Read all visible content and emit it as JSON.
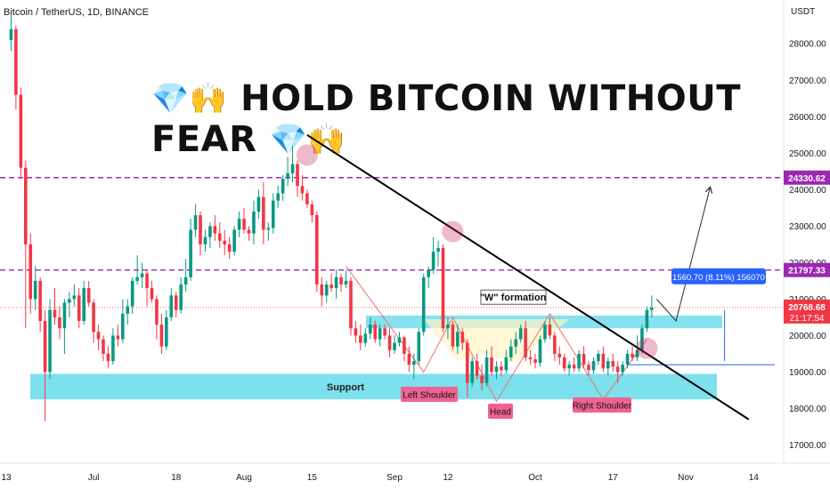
{
  "header": {
    "symbol": "Bitcoin / TetherUS, 1D, BINANCE"
  },
  "banner": {
    "left_icons": "💎🙌",
    "text": "HOLD BITCOIN WITHOUT FEAR",
    "right_icons": "💎🙌"
  },
  "chart_data": {
    "type": "candlestick",
    "currency": "USDT",
    "ylim": [
      16500,
      29200
    ],
    "y_ticks": [
      17000,
      18000,
      19000,
      20000,
      21000,
      22000,
      23000,
      24000,
      25000,
      26000,
      27000,
      28000
    ],
    "y_tick_labels": [
      "17000.00",
      "18000.00",
      "19000.00",
      "20000.00",
      "21000.00",
      "22000.00",
      "23000.00",
      "24000.00",
      "25000.00",
      "26000.00",
      "27000.00",
      "28000.00"
    ],
    "x_tick_labels": [
      "13",
      "Jul",
      "18",
      "Aug",
      "15",
      "Sep",
      "12",
      "Oct",
      "17",
      "Nov",
      "14"
    ],
    "x_tick_days": [
      0,
      18,
      35,
      49,
      63,
      80,
      91,
      109,
      125,
      140,
      154
    ],
    "last_candle_day": 133,
    "candles": [
      {
        "o": 28100,
        "h": 28800,
        "l": 27800,
        "c": 28400
      },
      {
        "o": 28400,
        "h": 28500,
        "l": 26200,
        "c": 26600
      },
      {
        "o": 26600,
        "h": 26800,
        "l": 24300,
        "c": 24600
      },
      {
        "o": 24600,
        "h": 24800,
        "l": 20200,
        "c": 22500
      },
      {
        "o": 22500,
        "h": 22800,
        "l": 20600,
        "c": 21000
      },
      {
        "o": 21000,
        "h": 21900,
        "l": 20700,
        "c": 21500
      },
      {
        "o": 21500,
        "h": 21600,
        "l": 20100,
        "c": 20400
      },
      {
        "o": 20400,
        "h": 20700,
        "l": 17650,
        "c": 19000
      },
      {
        "o": 19000,
        "h": 21000,
        "l": 18800,
        "c": 20700
      },
      {
        "o": 20700,
        "h": 21300,
        "l": 20300,
        "c": 20500
      },
      {
        "o": 20500,
        "h": 20800,
        "l": 19900,
        "c": 20200
      },
      {
        "o": 20200,
        "h": 21000,
        "l": 19500,
        "c": 20900
      },
      {
        "o": 20900,
        "h": 21200,
        "l": 20500,
        "c": 21000
      },
      {
        "o": 21000,
        "h": 21400,
        "l": 20800,
        "c": 21100
      },
      {
        "o": 21100,
        "h": 21300,
        "l": 20200,
        "c": 20400
      },
      {
        "o": 20400,
        "h": 21500,
        "l": 20300,
        "c": 21300
      },
      {
        "o": 21300,
        "h": 21500,
        "l": 20800,
        "c": 20900
      },
      {
        "o": 20900,
        "h": 21000,
        "l": 19800,
        "c": 20100
      },
      {
        "o": 20100,
        "h": 20300,
        "l": 19600,
        "c": 19900
      },
      {
        "o": 19900,
        "h": 20000,
        "l": 19300,
        "c": 19500
      },
      {
        "o": 19500,
        "h": 19700,
        "l": 19100,
        "c": 19300
      },
      {
        "o": 19300,
        "h": 20200,
        "l": 19200,
        "c": 20000
      },
      {
        "o": 20000,
        "h": 20300,
        "l": 19700,
        "c": 19900
      },
      {
        "o": 19900,
        "h": 21000,
        "l": 19800,
        "c": 20600
      },
      {
        "o": 20600,
        "h": 21000,
        "l": 20300,
        "c": 20800
      },
      {
        "o": 20800,
        "h": 21600,
        "l": 20600,
        "c": 21500
      },
      {
        "o": 21500,
        "h": 22200,
        "l": 21400,
        "c": 21600
      },
      {
        "o": 21600,
        "h": 22000,
        "l": 21300,
        "c": 21700
      },
      {
        "o": 21700,
        "h": 21800,
        "l": 20800,
        "c": 21300
      },
      {
        "o": 21300,
        "h": 21500,
        "l": 20900,
        "c": 21000
      },
      {
        "o": 21000,
        "h": 21100,
        "l": 19900,
        "c": 20300
      },
      {
        "o": 20300,
        "h": 20600,
        "l": 19500,
        "c": 19700
      },
      {
        "o": 19700,
        "h": 20700,
        "l": 19600,
        "c": 20500
      },
      {
        "o": 20500,
        "h": 21300,
        "l": 20400,
        "c": 21100
      },
      {
        "o": 21100,
        "h": 21200,
        "l": 20500,
        "c": 20700
      },
      {
        "o": 20700,
        "h": 21600,
        "l": 20600,
        "c": 21400
      },
      {
        "o": 21400,
        "h": 22100,
        "l": 21200,
        "c": 21600
      },
      {
        "o": 21600,
        "h": 23200,
        "l": 21500,
        "c": 22900
      },
      {
        "o": 22900,
        "h": 23600,
        "l": 22700,
        "c": 23300
      },
      {
        "o": 23300,
        "h": 23400,
        "l": 22200,
        "c": 22500
      },
      {
        "o": 22500,
        "h": 22900,
        "l": 22300,
        "c": 22700
      },
      {
        "o": 22700,
        "h": 23100,
        "l": 22400,
        "c": 23000
      },
      {
        "o": 23000,
        "h": 23300,
        "l": 22600,
        "c": 22800
      },
      {
        "o": 22800,
        "h": 23100,
        "l": 22400,
        "c": 22600
      },
      {
        "o": 22600,
        "h": 22900,
        "l": 22200,
        "c": 22500
      },
      {
        "o": 22500,
        "h": 22700,
        "l": 22100,
        "c": 22300
      },
      {
        "o": 22300,
        "h": 23000,
        "l": 22200,
        "c": 22900
      },
      {
        "o": 22900,
        "h": 23400,
        "l": 22700,
        "c": 23200
      },
      {
        "o": 23200,
        "h": 23500,
        "l": 22800,
        "c": 22900
      },
      {
        "o": 22900,
        "h": 23000,
        "l": 22600,
        "c": 22800
      },
      {
        "o": 22800,
        "h": 23700,
        "l": 22500,
        "c": 23400
      },
      {
        "o": 23400,
        "h": 24000,
        "l": 23200,
        "c": 23800
      },
      {
        "o": 23800,
        "h": 24200,
        "l": 22500,
        "c": 22900
      },
      {
        "o": 22900,
        "h": 23100,
        "l": 22600,
        "c": 22950
      },
      {
        "o": 22950,
        "h": 23900,
        "l": 22800,
        "c": 23700
      },
      {
        "o": 23700,
        "h": 24100,
        "l": 23500,
        "c": 23900
      },
      {
        "o": 23900,
        "h": 24400,
        "l": 23700,
        "c": 24300
      },
      {
        "o": 24300,
        "h": 24900,
        "l": 24100,
        "c": 24450
      },
      {
        "o": 24450,
        "h": 25200,
        "l": 24200,
        "c": 24700
      },
      {
        "o": 24700,
        "h": 24800,
        "l": 23800,
        "c": 24100
      },
      {
        "o": 24100,
        "h": 24400,
        "l": 23700,
        "c": 23900
      },
      {
        "o": 23900,
        "h": 24000,
        "l": 23500,
        "c": 23600
      },
      {
        "o": 23600,
        "h": 23700,
        "l": 23100,
        "c": 23300
      },
      {
        "o": 23300,
        "h": 23400,
        "l": 21200,
        "c": 21400
      },
      {
        "o": 21400,
        "h": 21600,
        "l": 20800,
        "c": 21100
      },
      {
        "o": 21100,
        "h": 21500,
        "l": 20900,
        "c": 21400
      },
      {
        "o": 21400,
        "h": 21700,
        "l": 21200,
        "c": 21300
      },
      {
        "o": 21300,
        "h": 21800,
        "l": 21000,
        "c": 21600
      },
      {
        "o": 21600,
        "h": 21700,
        "l": 21200,
        "c": 21400
      },
      {
        "o": 21400,
        "h": 21800,
        "l": 21300,
        "c": 21500
      },
      {
        "o": 21500,
        "h": 21600,
        "l": 20000,
        "c": 20200
      },
      {
        "o": 20200,
        "h": 20400,
        "l": 19800,
        "c": 20000
      },
      {
        "o": 20000,
        "h": 20300,
        "l": 19600,
        "c": 19800
      },
      {
        "o": 19800,
        "h": 20200,
        "l": 19700,
        "c": 20050
      },
      {
        "o": 20050,
        "h": 20500,
        "l": 19900,
        "c": 20300
      },
      {
        "o": 20300,
        "h": 20400,
        "l": 19800,
        "c": 19900
      },
      {
        "o": 19900,
        "h": 20300,
        "l": 19700,
        "c": 20200
      },
      {
        "o": 20200,
        "h": 20300,
        "l": 19900,
        "c": 20000
      },
      {
        "o": 20000,
        "h": 20200,
        "l": 19400,
        "c": 19600
      },
      {
        "o": 19600,
        "h": 20000,
        "l": 19500,
        "c": 19800
      },
      {
        "o": 19800,
        "h": 20100,
        "l": 19700,
        "c": 19950
      },
      {
        "o": 19950,
        "h": 20000,
        "l": 19300,
        "c": 19500
      },
      {
        "o": 19500,
        "h": 19700,
        "l": 19000,
        "c": 19200
      },
      {
        "o": 19200,
        "h": 19500,
        "l": 18800,
        "c": 19300
      },
      {
        "o": 19300,
        "h": 20200,
        "l": 19200,
        "c": 20100
      },
      {
        "o": 20100,
        "h": 21700,
        "l": 20000,
        "c": 21600
      },
      {
        "o": 21600,
        "h": 21900,
        "l": 21300,
        "c": 21800
      },
      {
        "o": 21800,
        "h": 22700,
        "l": 21700,
        "c": 22300
      },
      {
        "o": 22300,
        "h": 22600,
        "l": 21900,
        "c": 22400
      },
      {
        "o": 22400,
        "h": 22500,
        "l": 20100,
        "c": 20200
      },
      {
        "o": 20200,
        "h": 20500,
        "l": 19900,
        "c": 20300
      },
      {
        "o": 20300,
        "h": 20400,
        "l": 19600,
        "c": 19700
      },
      {
        "o": 19700,
        "h": 20300,
        "l": 19500,
        "c": 20100
      },
      {
        "o": 20100,
        "h": 20200,
        "l": 19600,
        "c": 19800
      },
      {
        "o": 19800,
        "h": 19900,
        "l": 18300,
        "c": 18700
      },
      {
        "o": 18700,
        "h": 19400,
        "l": 18600,
        "c": 19300
      },
      {
        "o": 19300,
        "h": 19500,
        "l": 18800,
        "c": 18900
      },
      {
        "o": 18900,
        "h": 19200,
        "l": 18500,
        "c": 18700
      },
      {
        "o": 18700,
        "h": 19600,
        "l": 18600,
        "c": 19400
      },
      {
        "o": 19400,
        "h": 19700,
        "l": 18900,
        "c": 19000
      },
      {
        "o": 19000,
        "h": 19300,
        "l": 18800,
        "c": 19150
      },
      {
        "o": 19150,
        "h": 19300,
        "l": 18900,
        "c": 19050
      },
      {
        "o": 19050,
        "h": 19600,
        "l": 18950,
        "c": 19400
      },
      {
        "o": 19400,
        "h": 19900,
        "l": 19300,
        "c": 19700
      },
      {
        "o": 19700,
        "h": 20100,
        "l": 19500,
        "c": 19900
      },
      {
        "o": 19900,
        "h": 20300,
        "l": 19800,
        "c": 20200
      },
      {
        "o": 20200,
        "h": 20400,
        "l": 19300,
        "c": 19400
      },
      {
        "o": 19400,
        "h": 19600,
        "l": 19200,
        "c": 19350
      },
      {
        "o": 19350,
        "h": 19500,
        "l": 19100,
        "c": 19250
      },
      {
        "o": 19250,
        "h": 20000,
        "l": 19150,
        "c": 19900
      },
      {
        "o": 19900,
        "h": 20400,
        "l": 19800,
        "c": 20300
      },
      {
        "o": 20300,
        "h": 20500,
        "l": 19900,
        "c": 20000
      },
      {
        "o": 20000,
        "h": 20100,
        "l": 19300,
        "c": 19500
      },
      {
        "o": 19500,
        "h": 19700,
        "l": 19200,
        "c": 19400
      },
      {
        "o": 19400,
        "h": 19500,
        "l": 19000,
        "c": 19100
      },
      {
        "o": 19100,
        "h": 19300,
        "l": 18900,
        "c": 19200
      },
      {
        "o": 19200,
        "h": 19400,
        "l": 19000,
        "c": 19100
      },
      {
        "o": 19100,
        "h": 19600,
        "l": 19000,
        "c": 19500
      },
      {
        "o": 19500,
        "h": 19700,
        "l": 19100,
        "c": 19200
      },
      {
        "o": 19200,
        "h": 19300,
        "l": 18900,
        "c": 19050
      },
      {
        "o": 19050,
        "h": 19400,
        "l": 18950,
        "c": 19300
      },
      {
        "o": 19300,
        "h": 19600,
        "l": 19200,
        "c": 19500
      },
      {
        "o": 19500,
        "h": 19700,
        "l": 19000,
        "c": 19100
      },
      {
        "o": 19100,
        "h": 19400,
        "l": 18900,
        "c": 19300
      },
      {
        "o": 19300,
        "h": 19500,
        "l": 19000,
        "c": 19150
      },
      {
        "o": 19150,
        "h": 19300,
        "l": 18700,
        "c": 19000
      },
      {
        "o": 19000,
        "h": 19300,
        "l": 18900,
        "c": 19200
      },
      {
        "o": 19200,
        "h": 19600,
        "l": 19100,
        "c": 19500
      },
      {
        "o": 19500,
        "h": 19700,
        "l": 19300,
        "c": 19400
      },
      {
        "o": 19400,
        "h": 20000,
        "l": 19300,
        "c": 19600
      },
      {
        "o": 19600,
        "h": 20300,
        "l": 19500,
        "c": 20200
      },
      {
        "o": 20200,
        "h": 20800,
        "l": 20100,
        "c": 20700
      },
      {
        "o": 20700,
        "h": 21100,
        "l": 20500,
        "c": 20768.68
      }
    ],
    "horizontal_levels": [
      {
        "price": 24330.62,
        "label": "24330.62",
        "color": "#9c27b0"
      },
      {
        "price": 21797.33,
        "label": "21797.33",
        "color": "#9c27b0"
      }
    ],
    "last_price": {
      "price": 20768.68,
      "label": "20768.68",
      "countdown": "21:17:54",
      "color": "#f23645"
    },
    "target_level": {
      "price": 19200
    },
    "zones": [
      {
        "name": "support",
        "label": "Support",
        "from": 18250,
        "to": 18950,
        "color": "#5dd8e8"
      },
      {
        "name": "neckline",
        "label": "",
        "from": 20200,
        "to": 20550,
        "color": "#5dd8e8"
      }
    ],
    "measure_label": "1560.70 (8.11%) 156070",
    "annotations": [
      {
        "text": "\"W\" formation",
        "style": "box"
      },
      {
        "text": "Left Shoulder",
        "style": "tag"
      },
      {
        "text": "Head",
        "style": "tag"
      },
      {
        "text": "Right Shoulder",
        "style": "tag"
      }
    ],
    "colors": {
      "up": "#089981",
      "down": "#f23645",
      "trend": "#000000",
      "pattern": "#e57373",
      "projection": "#2b2b2b"
    }
  }
}
